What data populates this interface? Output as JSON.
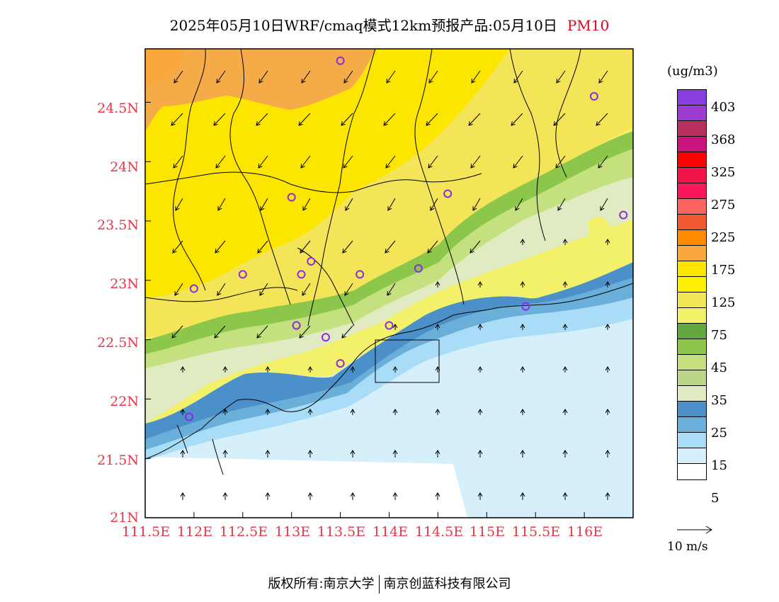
{
  "header": {
    "title": "2025年05月10日WRF/cmaq模式12km预报产品:05月10日",
    "pollutant": "PM10"
  },
  "map": {
    "lat_labels": [
      "24.5N",
      "24N",
      "23.5N",
      "23N",
      "22.5N",
      "22N",
      "21.5N",
      "21N"
    ],
    "lon_labels": [
      "111.5E",
      "112E",
      "112.5E",
      "113E",
      "113.5E",
      "114E",
      "114.5E",
      "115E",
      "115.5E",
      "116E"
    ],
    "extent": {
      "lon": [
        111.5,
        116.5
      ],
      "lat": [
        21.0,
        24.95
      ]
    },
    "stations": [
      {
        "lon": 113.5,
        "lat": 24.85
      },
      {
        "lon": 116.1,
        "lat": 24.55
      },
      {
        "lon": 113.0,
        "lat": 23.7
      },
      {
        "lon": 114.6,
        "lat": 23.73
      },
      {
        "lon": 116.4,
        "lat": 23.55
      },
      {
        "lon": 113.2,
        "lat": 23.16
      },
      {
        "lon": 113.1,
        "lat": 23.05
      },
      {
        "lon": 112.5,
        "lat": 23.05
      },
      {
        "lon": 112.0,
        "lat": 22.93
      },
      {
        "lon": 113.7,
        "lat": 23.05
      },
      {
        "lon": 114.3,
        "lat": 23.1
      },
      {
        "lon": 115.4,
        "lat": 22.78
      },
      {
        "lon": 114.0,
        "lat": 22.62
      },
      {
        "lon": 113.05,
        "lat": 22.62
      },
      {
        "lon": 113.35,
        "lat": 22.52
      },
      {
        "lon": 113.5,
        "lat": 22.3
      },
      {
        "lon": 111.95,
        "lat": 21.85
      }
    ],
    "colors": {
      "land_orange": "#f4ab48",
      "yellow_bright": "#fce600",
      "yellow_pale": "#f4e457",
      "yellow_light": "#f3f169",
      "green_dark": "#62a83c",
      "green_mid": "#8cc64a",
      "green_light": "#c4e07f",
      "green_pale": "#e0ebc2",
      "blue_dark": "#4b90c8",
      "blue_mid": "#7fb7e4",
      "blue_light": "#a9dcf7",
      "blue_pale": "#d5effb",
      "station": "#8a2be2"
    }
  },
  "legend": {
    "units": "(ug/m3)",
    "colors": [
      "#8a3ee0",
      "#9d3ad0",
      "#b83060",
      "#c8157e",
      "#ff0000",
      "#f01448",
      "#f9185a",
      "#fc6462",
      "#ef5a32",
      "#ff8c00",
      "#f9a93c",
      "#fce600",
      "#fff200",
      "#f4e457",
      "#f3f169",
      "#62a83c",
      "#8cc64a",
      "#c4e07f",
      "#bbd68a",
      "#e0ebc2",
      "#4b90c8",
      "#6aaeda",
      "#a9dcf7",
      "#d5effb",
      "#ffffff"
    ],
    "labels": [
      "403",
      "368",
      "325",
      "275",
      "225",
      "175",
      "125",
      "75",
      "45",
      "35",
      "25",
      "15",
      "5"
    ],
    "wind_label": "10 m/s"
  },
  "footer": {
    "left": "版权所有:南京大学",
    "right": "南京创蓝科技有限公司"
  }
}
